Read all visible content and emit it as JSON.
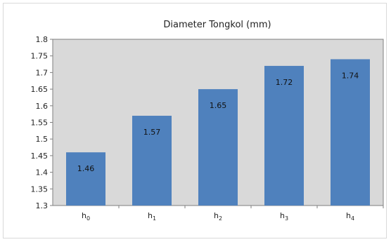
{
  "chart_data": {
    "type": "bar",
    "title": "Diameter Tongkol (mm)",
    "xlabel": "",
    "ylabel": "",
    "categories": [
      {
        "base": "h",
        "sub": "0"
      },
      {
        "base": "h",
        "sub": "1"
      },
      {
        "base": "h",
        "sub": "2"
      },
      {
        "base": "h",
        "sub": "3"
      },
      {
        "base": "h",
        "sub": "4"
      }
    ],
    "values": [
      1.46,
      1.57,
      1.65,
      1.72,
      1.74
    ],
    "data_labels": [
      "1.46",
      "1.57",
      "1.65",
      "1.72",
      "1.74"
    ],
    "y_ticks": [
      "1.3",
      "1.35",
      "1.4",
      "1.45",
      "1.5",
      "1.55",
      "1.6",
      "1.65",
      "1.7",
      "1.75",
      "1.8"
    ],
    "ylim": [
      1.3,
      1.8
    ],
    "grid": false,
    "legend": "none",
    "colors": {
      "bar": "#4f81bd",
      "plot_background": "#d9d9d9",
      "plot_border": "#7f7f7f"
    }
  }
}
